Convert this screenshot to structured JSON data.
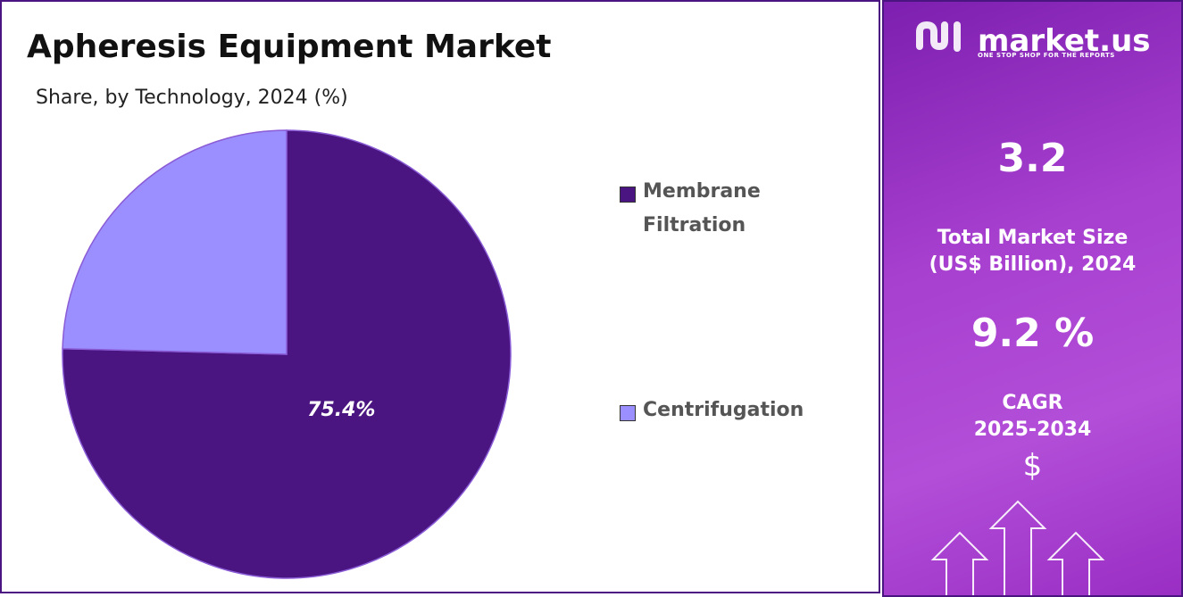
{
  "chart_data": {
    "type": "pie",
    "title": "Apheresis Equipment Market",
    "subtitle": "Share, by Technology, 2024 (%)",
    "categories": [
      "Membrane Filtration",
      "Centrifugation"
    ],
    "values": [
      75.4,
      24.6
    ],
    "value_labels": [
      "75.4%",
      null
    ],
    "colors": [
      "#4a1580",
      "#9b8fff"
    ]
  },
  "brand": {
    "name": "market.us",
    "tagline": "ONE STOP SHOP FOR THE REPORTS"
  },
  "stats": {
    "market_size": {
      "value": 3.2,
      "label_lines": [
        "Total Market Size",
        "(US$ Billion), 2024"
      ]
    },
    "cagr": {
      "value": 9.2,
      "value_label": "9.2 %",
      "label_lines": [
        "CAGR",
        "2025-2034"
      ]
    },
    "currency_icon": "$"
  }
}
